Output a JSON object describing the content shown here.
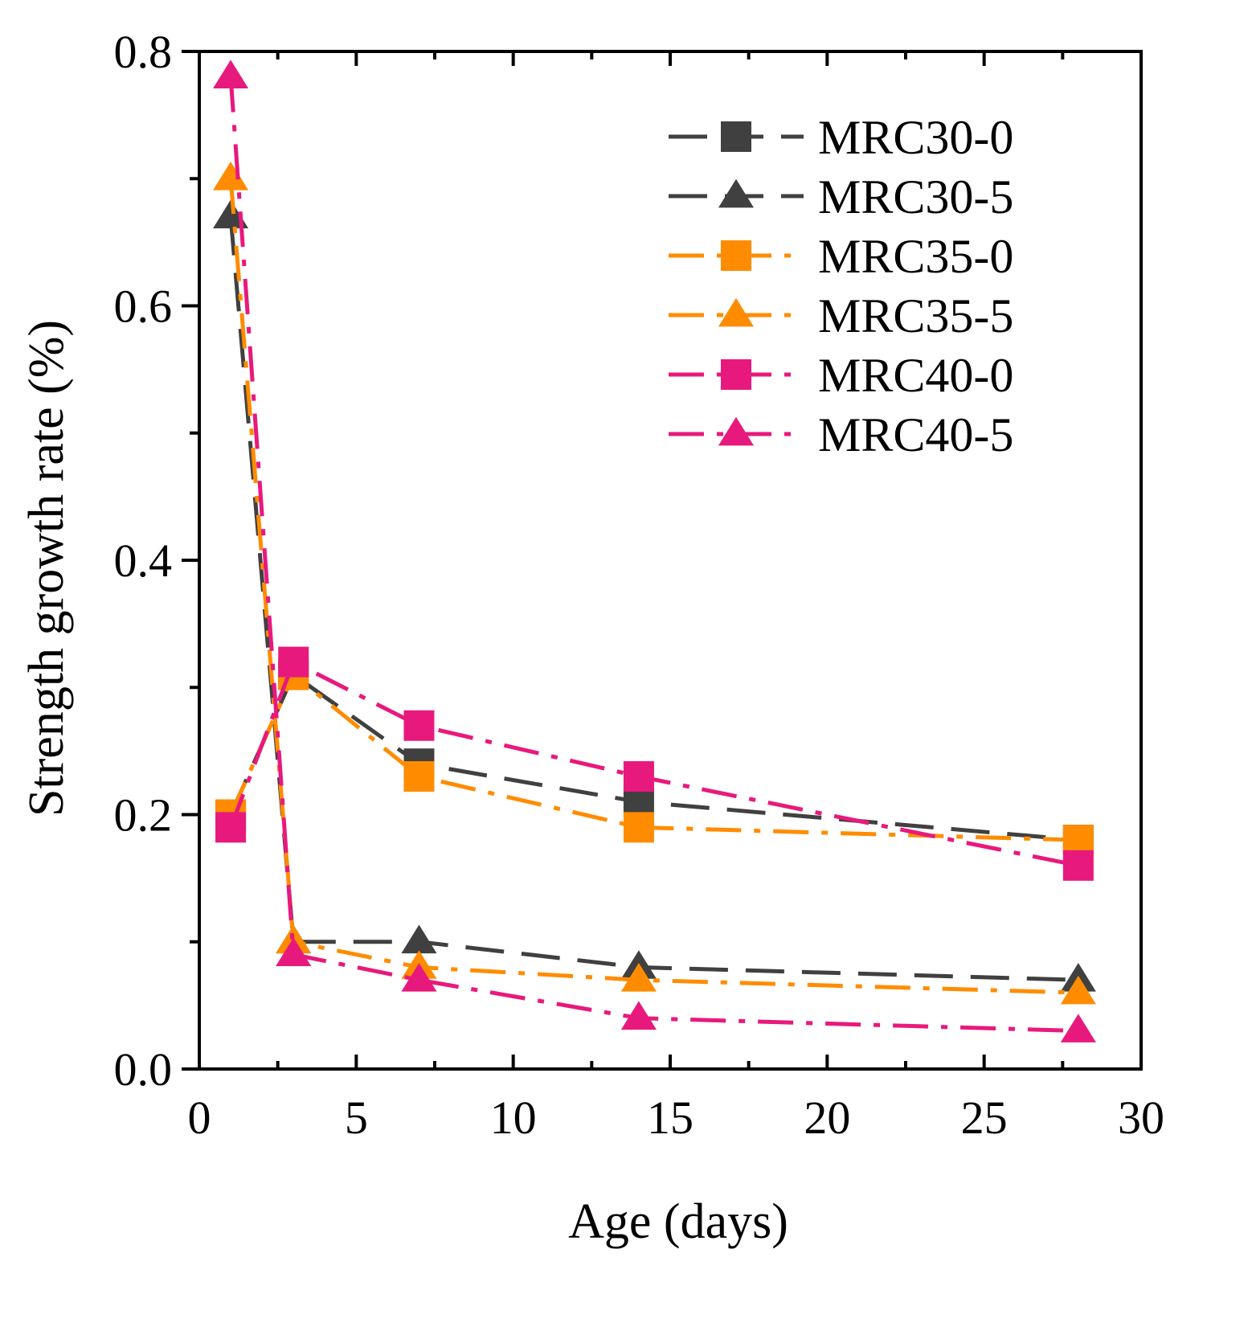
{
  "chart_data": {
    "type": "line",
    "title": "",
    "xlabel": "Age (days)",
    "ylabel": "Strength growth rate (%)",
    "xlim": [
      0,
      30
    ],
    "ylim": [
      0.0,
      0.8
    ],
    "x_ticks": [
      0,
      5,
      10,
      15,
      20,
      25,
      30
    ],
    "x_tick_labels": [
      "0",
      "5",
      "10",
      "15",
      "20",
      "25",
      "30"
    ],
    "y_ticks": [
      0.0,
      0.2,
      0.4,
      0.6,
      0.8
    ],
    "y_tick_labels": [
      "0.0",
      "0.2",
      "0.4",
      "0.6",
      "0.8"
    ],
    "grid": false,
    "legend_position": "top-right",
    "x": [
      1,
      3,
      7,
      14,
      28
    ],
    "series": [
      {
        "name": "MRC30-0",
        "values": [
          0.2,
          0.31,
          0.24,
          0.21,
          0.18
        ],
        "color": "#404040",
        "marker": "square",
        "dash": "dash"
      },
      {
        "name": "MRC30-5",
        "values": [
          0.67,
          0.1,
          0.1,
          0.08,
          0.07
        ],
        "color": "#404040",
        "marker": "triangle",
        "dash": "dash"
      },
      {
        "name": "MRC35-0",
        "values": [
          0.2,
          0.31,
          0.23,
          0.19,
          0.18
        ],
        "color": "#ff8c00",
        "marker": "square",
        "dash": "dashdot"
      },
      {
        "name": "MRC35-5",
        "values": [
          0.7,
          0.1,
          0.08,
          0.07,
          0.06
        ],
        "color": "#ff8c00",
        "marker": "triangle",
        "dash": "dashdot"
      },
      {
        "name": "MRC40-0",
        "values": [
          0.19,
          0.32,
          0.27,
          0.23,
          0.16
        ],
        "color": "#e8197d",
        "marker": "square",
        "dash": "dashdot"
      },
      {
        "name": "MRC40-5",
        "values": [
          0.78,
          0.09,
          0.07,
          0.04,
          0.03
        ],
        "color": "#e8197d",
        "marker": "triangle",
        "dash": "dashdot"
      }
    ]
  }
}
